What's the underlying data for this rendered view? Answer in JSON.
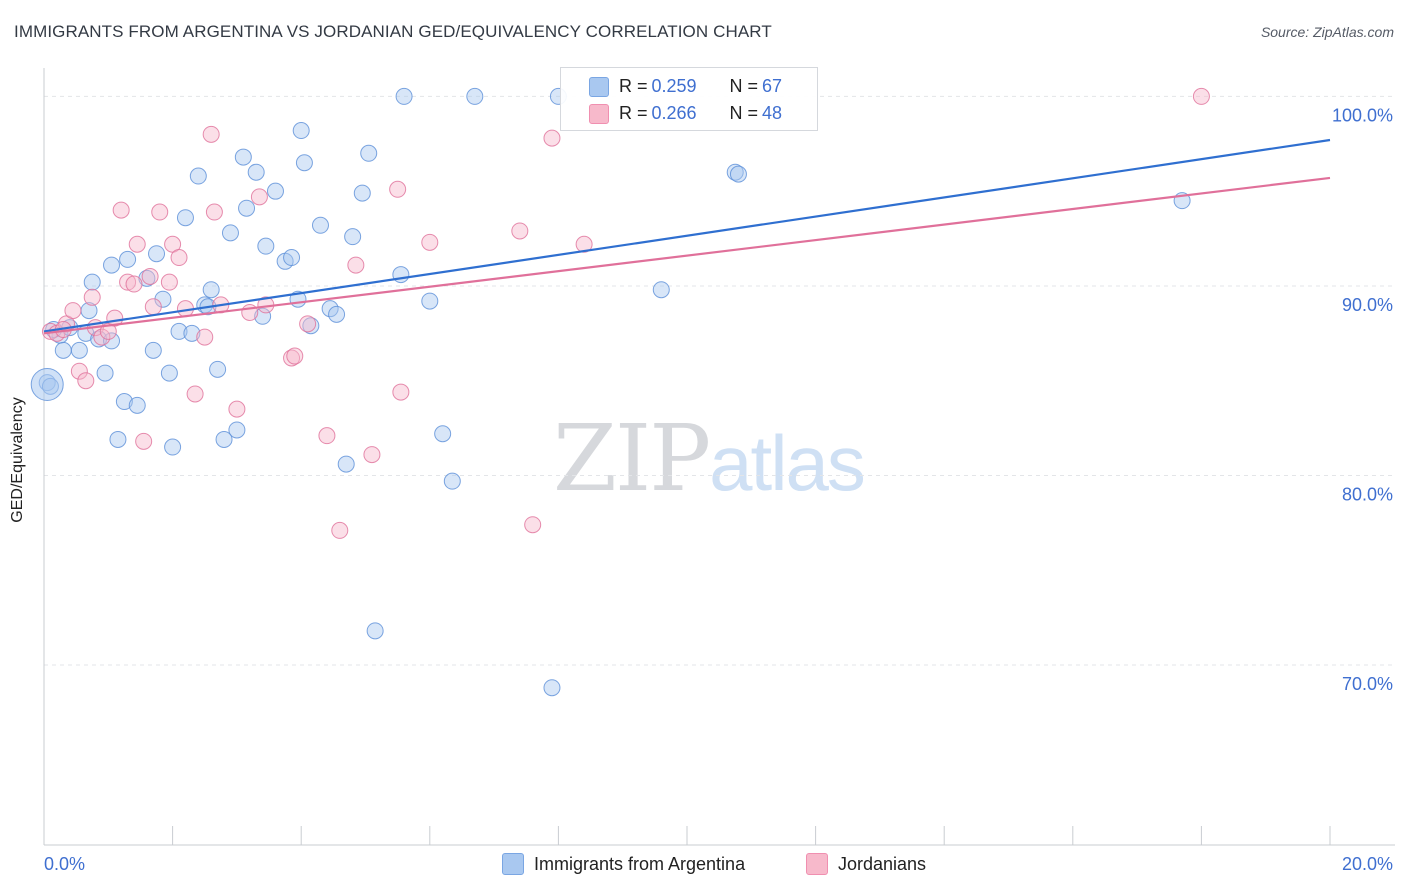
{
  "header": {
    "title": "IMMIGRANTS FROM ARGENTINA VS JORDANIAN GED/EQUIVALENCY CORRELATION CHART",
    "source": "Source: ZipAtlas.com"
  },
  "watermark": {
    "zip": "ZIP",
    "atlas": "atlas"
  },
  "legend": {
    "rows": [
      {
        "r_label": "R = ",
        "r_value": "0.259",
        "n_label": "N = ",
        "n_value": "67",
        "color": "#a9c8f0"
      },
      {
        "r_label": "R = ",
        "r_value": "0.266",
        "n_label": "N = ",
        "n_value": "48",
        "color": "#f7b9cb"
      }
    ],
    "bottom": [
      {
        "label": "Immigrants from Argentina",
        "color": "#a9c8f0"
      },
      {
        "label": "Jordanians",
        "color": "#f7b9cb"
      }
    ]
  },
  "chart_data": {
    "type": "scatter",
    "title": "IMMIGRANTS FROM ARGENTINA VS JORDANIAN GED/EQUIVALENCY CORRELATION CHART",
    "xlabel": "",
    "ylabel": "GED/Equivalency",
    "xlim": [
      0,
      20
    ],
    "ylim": [
      60.5,
      101.5
    ],
    "x_tick_labels": [
      "0.0%",
      "20.0%"
    ],
    "y_ticks": [
      70,
      80,
      90,
      100
    ],
    "y_tick_labels": [
      "70.0%",
      "80.0%",
      "90.0%",
      "100.0%"
    ],
    "grid": true,
    "legend_position": "top-center",
    "series": [
      {
        "name": "Immigrants from Argentina",
        "color": "#5b8fd8",
        "fill": "#a9c8f0",
        "trend": {
          "x": [
            0,
            20
          ],
          "y": [
            87.6,
            97.7
          ]
        },
        "points": [
          [
            0.05,
            84.9
          ],
          [
            0.1,
            84.7
          ],
          [
            0.25,
            87.4
          ],
          [
            0.3,
            86.6
          ],
          [
            0.4,
            87.8
          ],
          [
            0.55,
            86.6
          ],
          [
            0.65,
            87.5
          ],
          [
            0.7,
            88.7
          ],
          [
            0.75,
            90.2
          ],
          [
            0.85,
            87.2
          ],
          [
            0.95,
            85.4
          ],
          [
            1.05,
            87.1
          ],
          [
            1.05,
            91.1
          ],
          [
            1.15,
            81.9
          ],
          [
            1.25,
            83.9
          ],
          [
            1.3,
            91.4
          ],
          [
            1.45,
            83.7
          ],
          [
            1.6,
            90.4
          ],
          [
            1.7,
            86.6
          ],
          [
            1.75,
            91.7
          ],
          [
            1.85,
            89.3
          ],
          [
            1.95,
            85.4
          ],
          [
            2.0,
            81.5
          ],
          [
            2.1,
            87.6
          ],
          [
            2.2,
            93.6
          ],
          [
            2.3,
            87.5
          ],
          [
            2.4,
            95.8
          ],
          [
            2.5,
            89.0
          ],
          [
            2.6,
            89.8
          ],
          [
            2.7,
            85.6
          ],
          [
            2.8,
            81.9
          ],
          [
            2.9,
            92.8
          ],
          [
            3.0,
            82.4
          ],
          [
            3.1,
            96.8
          ],
          [
            3.15,
            94.1
          ],
          [
            3.3,
            96.0
          ],
          [
            3.4,
            88.4
          ],
          [
            3.45,
            92.1
          ],
          [
            3.6,
            95.0
          ],
          [
            3.75,
            91.3
          ],
          [
            3.85,
            91.5
          ],
          [
            3.95,
            89.3
          ],
          [
            4.0,
            98.2
          ],
          [
            4.05,
            96.5
          ],
          [
            4.15,
            87.9
          ],
          [
            4.3,
            93.2
          ],
          [
            4.45,
            88.8
          ],
          [
            4.55,
            88.5
          ],
          [
            4.7,
            80.6
          ],
          [
            4.8,
            92.6
          ],
          [
            4.95,
            94.9
          ],
          [
            5.05,
            97.0
          ],
          [
            5.15,
            71.8
          ],
          [
            5.55,
            90.6
          ],
          [
            5.6,
            100.0
          ],
          [
            6.0,
            89.2
          ],
          [
            6.2,
            82.2
          ],
          [
            6.35,
            79.7
          ],
          [
            6.7,
            100.0
          ],
          [
            7.9,
            68.8
          ],
          [
            8.0,
            100.0
          ],
          [
            9.6,
            89.8
          ],
          [
            10.75,
            96.0
          ],
          [
            10.8,
            95.9
          ],
          [
            17.7,
            94.5
          ],
          [
            0.15,
            87.7
          ],
          [
            2.55,
            88.9
          ]
        ]
      },
      {
        "name": "Jordanians",
        "color": "#e0709a",
        "fill": "#f7b9cb",
        "trend": {
          "x": [
            0,
            20
          ],
          "y": [
            87.5,
            95.7
          ]
        },
        "points": [
          [
            0.1,
            87.6
          ],
          [
            0.2,
            87.5
          ],
          [
            0.35,
            88.0
          ],
          [
            0.45,
            88.7
          ],
          [
            0.55,
            85.5
          ],
          [
            0.65,
            85.0
          ],
          [
            0.75,
            89.4
          ],
          [
            0.8,
            87.8
          ],
          [
            0.9,
            87.3
          ],
          [
            1.0,
            87.6
          ],
          [
            1.1,
            88.3
          ],
          [
            1.2,
            94.0
          ],
          [
            1.3,
            90.2
          ],
          [
            1.4,
            90.1
          ],
          [
            1.45,
            92.2
          ],
          [
            1.55,
            81.8
          ],
          [
            1.65,
            90.5
          ],
          [
            1.7,
            88.9
          ],
          [
            1.8,
            93.9
          ],
          [
            1.95,
            90.2
          ],
          [
            2.0,
            92.2
          ],
          [
            2.1,
            91.5
          ],
          [
            2.2,
            88.8
          ],
          [
            2.35,
            84.3
          ],
          [
            2.5,
            87.3
          ],
          [
            2.6,
            98.0
          ],
          [
            2.65,
            93.9
          ],
          [
            2.75,
            89.0
          ],
          [
            3.0,
            83.5
          ],
          [
            3.2,
            88.6
          ],
          [
            3.35,
            94.7
          ],
          [
            3.45,
            89.0
          ],
          [
            3.85,
            86.2
          ],
          [
            3.9,
            86.3
          ],
          [
            4.1,
            88.0
          ],
          [
            4.4,
            82.1
          ],
          [
            4.6,
            77.1
          ],
          [
            4.85,
            91.1
          ],
          [
            5.1,
            81.1
          ],
          [
            5.5,
            95.1
          ],
          [
            5.55,
            84.4
          ],
          [
            6.0,
            92.3
          ],
          [
            7.4,
            92.9
          ],
          [
            7.6,
            77.4
          ],
          [
            7.9,
            97.8
          ],
          [
            8.4,
            92.2
          ],
          [
            18.0,
            100.0
          ],
          [
            0.3,
            87.7
          ]
        ]
      }
    ]
  }
}
